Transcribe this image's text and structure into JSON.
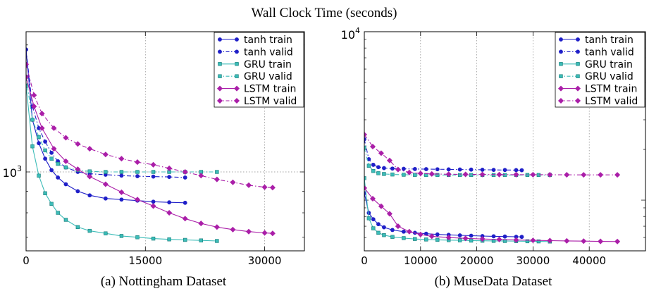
{
  "figure": {
    "title": "Wall Clock Time (seconds)"
  },
  "legend_entries": [
    {
      "label": "tanh train",
      "color": "#1f1fc8",
      "dash": "solid",
      "marker": "circle"
    },
    {
      "label": "tanh valid",
      "color": "#1f1fc8",
      "dash": "dashdot",
      "marker": "circle"
    },
    {
      "label": "GRU train",
      "color": "#3cbcb8",
      "dash": "solid",
      "marker": "square"
    },
    {
      "label": "GRU valid",
      "color": "#3cbcb8",
      "dash": "dashdot",
      "marker": "square"
    },
    {
      "label": "LSTM train",
      "color": "#aa1ea8",
      "dash": "solid",
      "marker": "diamond"
    },
    {
      "label": "LSTM valid",
      "color": "#aa1ea8",
      "dash": "dashdot",
      "marker": "diamond"
    }
  ],
  "chart_data": [
    {
      "type": "line",
      "caption": "(a) Nottingham Dataset",
      "xlim": [
        0,
        35000
      ],
      "x_ticks": [
        0,
        15000,
        30000
      ],
      "x_tick_labels": [
        "0",
        "15000",
        "30000"
      ],
      "y_scale": "log",
      "ylim": [
        650,
        2150
      ],
      "y_ticks": [
        1000
      ],
      "y_tick_labels": [
        "10^3"
      ],
      "grid": true,
      "legend_position": "top-right",
      "series": [
        {
          "name": "tanh train",
          "x": [
            0,
            800,
            1600,
            2400,
            3200,
            4000,
            5000,
            6500,
            8000,
            10000,
            12000,
            14000,
            16000,
            18000,
            20000
          ],
          "y": [
            1950,
            1330,
            1170,
            1075,
            1010,
            970,
            935,
            900,
            880,
            865,
            860,
            855,
            850,
            847,
            845
          ]
        },
        {
          "name": "tanh valid",
          "x": [
            0,
            800,
            1600,
            2400,
            3200,
            4000,
            5000,
            6500,
            8000,
            10000,
            12000,
            14000,
            16000,
            18000,
            20000
          ],
          "y": [
            1950,
            1430,
            1270,
            1180,
            1110,
            1060,
            1025,
            1000,
            990,
            985,
            980,
            977,
            975,
            973,
            970
          ]
        },
        {
          "name": "GRU train",
          "x": [
            0,
            800,
            1600,
            2400,
            3200,
            4000,
            5000,
            6500,
            8000,
            10000,
            12000,
            14000,
            16000,
            18000,
            20000,
            22000,
            24000
          ],
          "y": [
            1600,
            1150,
            980,
            890,
            840,
            800,
            770,
            740,
            725,
            715,
            705,
            700,
            695,
            692,
            690,
            688,
            686
          ]
        },
        {
          "name": "GRU valid",
          "x": [
            0,
            800,
            1600,
            2400,
            3200,
            4000,
            5000,
            6500,
            8000,
            10000,
            12000,
            14000,
            16000,
            18000,
            20000,
            22000,
            24000
          ],
          "y": [
            1680,
            1330,
            1210,
            1125,
            1075,
            1045,
            1025,
            1010,
            1003,
            1000,
            1000,
            1000,
            1000,
            1000,
            1000,
            1000,
            1000
          ]
        },
        {
          "name": "LSTM train",
          "x": [
            0,
            1000,
            2000,
            3500,
            5000,
            6500,
            8000,
            10000,
            12000,
            14000,
            16000,
            18000,
            20000,
            22000,
            24000,
            26000,
            28000,
            30000,
            31000
          ],
          "y": [
            1680,
            1430,
            1270,
            1135,
            1060,
            1015,
            975,
            935,
            895,
            860,
            830,
            800,
            775,
            755,
            740,
            730,
            722,
            717,
            715
          ]
        },
        {
          "name": "LSTM valid",
          "x": [
            0,
            1000,
            2000,
            3500,
            5000,
            6500,
            8000,
            10000,
            12000,
            14000,
            16000,
            18000,
            20000,
            22000,
            24000,
            26000,
            28000,
            30000,
            31000
          ],
          "y": [
            1800,
            1520,
            1375,
            1270,
            1205,
            1165,
            1135,
            1100,
            1075,
            1055,
            1040,
            1020,
            1000,
            980,
            960,
            945,
            930,
            920,
            918
          ]
        }
      ]
    },
    {
      "type": "line",
      "caption": "(b) MuseData Dataset",
      "xlim": [
        0,
        50000
      ],
      "x_ticks": [
        0,
        10000,
        20000,
        30000,
        40000
      ],
      "x_tick_labels": [
        "0",
        "10000",
        "20000",
        "30000",
        "40000"
      ],
      "y_scale": "log",
      "ylim": [
        500,
        10000
      ],
      "y_ticks": [
        10000
      ],
      "y_tick_labels": [
        "10^4"
      ],
      "grid": true,
      "legend_position": "top-right",
      "series": [
        {
          "name": "tanh train",
          "x": [
            0,
            800,
            1600,
            2500,
            3500,
            5000,
            7000,
            9000,
            11000,
            13000,
            15000,
            17000,
            19000,
            21000,
            23000,
            25000,
            27000,
            28000
          ],
          "y": [
            1100,
            840,
            770,
            720,
            690,
            665,
            650,
            640,
            632,
            626,
            622,
            618,
            615,
            612,
            610,
            608,
            606,
            605
          ]
        },
        {
          "name": "tanh valid",
          "x": [
            0,
            800,
            1600,
            2500,
            3500,
            5000,
            7000,
            9000,
            11000,
            13000,
            15000,
            17000,
            19000,
            21000,
            23000,
            25000,
            27000,
            28000
          ],
          "y": [
            2300,
            1750,
            1620,
            1570,
            1550,
            1540,
            1535,
            1530,
            1528,
            1525,
            1522,
            1520,
            1518,
            1515,
            1512,
            1510,
            1508,
            1505
          ]
        },
        {
          "name": "GRU train",
          "x": [
            0,
            800,
            1600,
            2500,
            3500,
            5000,
            7000,
            9000,
            11000,
            13000,
            15000,
            17000,
            19000,
            21000,
            23000,
            25000,
            27000,
            29000,
            31000,
            33000
          ],
          "y": [
            1350,
            780,
            680,
            640,
            620,
            605,
            595,
            588,
            584,
            581,
            579,
            577,
            575,
            574,
            573,
            572,
            571,
            570,
            569,
            568
          ]
        },
        {
          "name": "GRU valid",
          "x": [
            0,
            800,
            1600,
            2500,
            3500,
            5000,
            7000,
            9000,
            11000,
            13000,
            15000,
            17000,
            19000,
            21000,
            23000,
            25000,
            27000,
            29000,
            31000,
            33000
          ],
          "y": [
            2050,
            1600,
            1490,
            1445,
            1430,
            1420,
            1415,
            1412,
            1410,
            1410,
            1410,
            1410,
            1410,
            1410,
            1410,
            1410,
            1410,
            1410,
            1410,
            1410
          ]
        },
        {
          "name": "LSTM train",
          "x": [
            0,
            1500,
            3000,
            4500,
            6000,
            8000,
            10000,
            12000,
            15000,
            18000,
            21000,
            24000,
            27000,
            30000,
            33000,
            36000,
            39000,
            42000,
            45000
          ],
          "y": [
            1180,
            1020,
            920,
            830,
            700,
            650,
            625,
            610,
            600,
            593,
            588,
            584,
            580,
            577,
            575,
            573,
            571,
            569,
            568
          ]
        },
        {
          "name": "LSTM valid",
          "x": [
            0,
            1500,
            3000,
            4500,
            6000,
            8000,
            10000,
            12000,
            15000,
            18000,
            21000,
            24000,
            27000,
            30000,
            33000,
            36000,
            39000,
            42000,
            45000
          ],
          "y": [
            2450,
            2080,
            1900,
            1720,
            1520,
            1460,
            1440,
            1430,
            1425,
            1422,
            1420,
            1418,
            1417,
            1416,
            1415,
            1414,
            1413,
            1413,
            1413
          ]
        }
      ]
    }
  ]
}
